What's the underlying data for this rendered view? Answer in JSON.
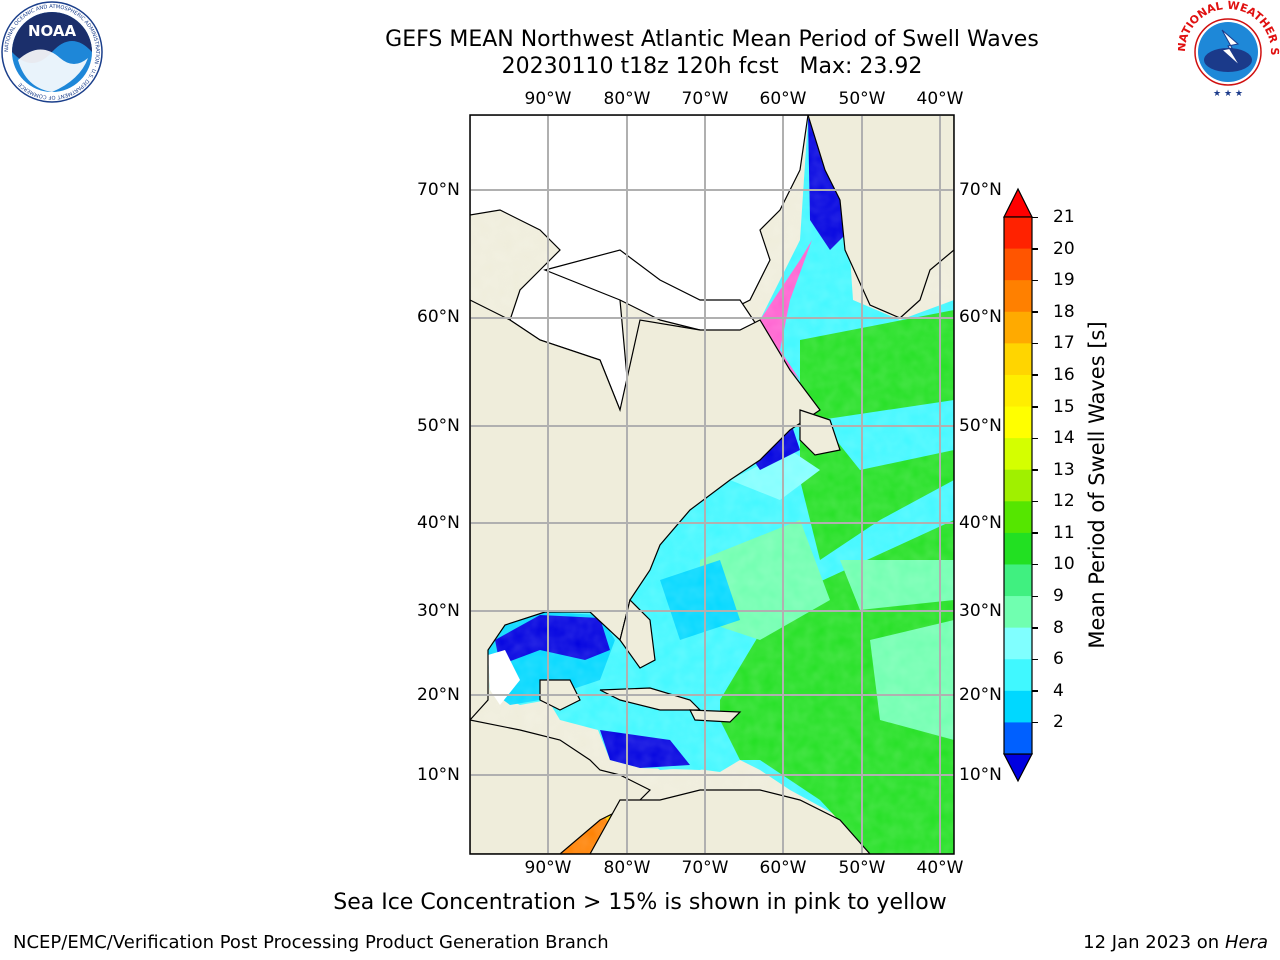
{
  "header": {
    "title": "GEFS MEAN Northwest Atlantic Mean Period of Swell Waves",
    "subtitle": "20230110 t18z 120h fcst   Max: 23.92"
  },
  "logos": {
    "left": {
      "text": "NOAA",
      "ring_text": "NATIONAL OCEANIC AND ATMOSPHERIC ADMINISTRATION · U.S. DEPARTMENT OF COMMERCE"
    },
    "right": {
      "ring_text": "NATIONAL WEATHER SERVICE"
    }
  },
  "map": {
    "lon_labels": [
      "90°W",
      "80°W",
      "70°W",
      "60°W",
      "50°W",
      "40°W"
    ],
    "lat_labels": [
      "70°N",
      "60°N",
      "50°N",
      "40°N",
      "30°N",
      "20°N",
      "10°N"
    ],
    "colors": {
      "land": "#efeddb",
      "ice_free_land": "#ffffff",
      "grid": "#b0b0b0"
    }
  },
  "colorbar": {
    "label": "Mean Period of Swell Waves [s]",
    "ticks": [
      "21",
      "20",
      "19",
      "18",
      "17",
      "16",
      "15",
      "14",
      "13",
      "12",
      "11",
      "10",
      "9",
      "8",
      "6",
      "4",
      "2"
    ],
    "colors": [
      "#ff2200",
      "#ff5500",
      "#ff8000",
      "#ffaa00",
      "#ffd500",
      "#ffee00",
      "#ffff00",
      "#d4ff00",
      "#a0f000",
      "#55e600",
      "#22e022",
      "#40f080",
      "#70ffb0",
      "#80ffff",
      "#40f8ff",
      "#00d8ff",
      "#0060ff"
    ],
    "under_color": "#0000e0",
    "over_color": "#ff0000"
  },
  "footer": {
    "note": "Sea Ice Concentration > 15% is shown in pink to yellow",
    "credit": "NCEP/EMC/Verification Post Processing Product Generation Branch",
    "date": "12 Jan 2023 on",
    "machine": "Hera"
  }
}
